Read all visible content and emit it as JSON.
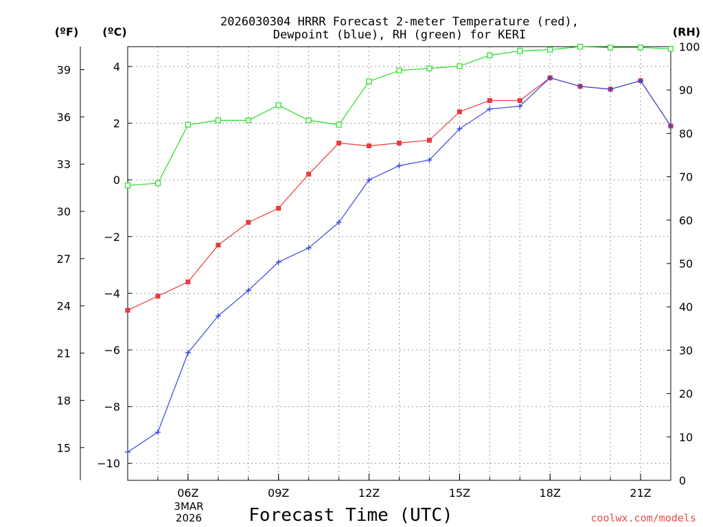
{
  "chart_data": {
    "type": "line",
    "title_line1": "2026030304 HRRR Forecast 2-meter Temperature (red),",
    "title_line2": "Dewpoint (blue), RH (green) for KERI",
    "unit_f": "(ºF)",
    "unit_c": "(ºC)",
    "unit_rh": "(RH)",
    "xlabel": "Forecast Time (UTC)",
    "date_line1": "3MAR",
    "date_line2": "2026",
    "credit": "coolwx.com/models",
    "x_hours": [
      4,
      5,
      6,
      7,
      8,
      9,
      10,
      11,
      12,
      13,
      14,
      15,
      16,
      17,
      18,
      19,
      20,
      21,
      22
    ],
    "xlim": [
      4,
      22
    ],
    "x_ticks": [
      {
        "hour": 6,
        "label": "06Z"
      },
      {
        "hour": 9,
        "label": "09Z"
      },
      {
        "hour": 12,
        "label": "12Z"
      },
      {
        "hour": 15,
        "label": "15Z"
      },
      {
        "hour": 18,
        "label": "18Z"
      },
      {
        "hour": 21,
        "label": "21Z"
      }
    ],
    "c_axis": {
      "range": [
        -10.6,
        4.7
      ],
      "ticks": [
        {
          "v": 4,
          "label": "4"
        },
        {
          "v": 2,
          "label": "2"
        },
        {
          "v": 0,
          "label": "0"
        },
        {
          "v": -2,
          "label": "−2"
        },
        {
          "v": -4,
          "label": "−4"
        },
        {
          "v": -6,
          "label": "−6"
        },
        {
          "v": -8,
          "label": "−8"
        },
        {
          "v": -10,
          "label": "−10"
        }
      ]
    },
    "f_axis": {
      "range": [
        12.92,
        40.46
      ],
      "ticks": [
        {
          "v": 39,
          "label": "39"
        },
        {
          "v": 36,
          "label": "36"
        },
        {
          "v": 33,
          "label": "33"
        },
        {
          "v": 30,
          "label": "30"
        },
        {
          "v": 27,
          "label": "27"
        },
        {
          "v": 24,
          "label": "24"
        },
        {
          "v": 21,
          "label": "21"
        },
        {
          "v": 18,
          "label": "18"
        },
        {
          "v": 15,
          "label": "15"
        }
      ]
    },
    "rh_axis": {
      "range": [
        0,
        100
      ],
      "ticks": [
        {
          "v": 100,
          "label": "100"
        },
        {
          "v": 90,
          "label": "90"
        },
        {
          "v": 80,
          "label": "80"
        },
        {
          "v": 70,
          "label": "70"
        },
        {
          "v": 60,
          "label": "60"
        },
        {
          "v": 50,
          "label": "50"
        },
        {
          "v": 40,
          "label": "40"
        },
        {
          "v": 30,
          "label": "30"
        },
        {
          "v": 20,
          "label": "20"
        },
        {
          "v": 10,
          "label": "10"
        },
        {
          "v": 0,
          "label": "0"
        }
      ]
    },
    "series": [
      {
        "name": "Temperature",
        "units": "C",
        "color": "#e83a3a",
        "marker": "filled-square",
        "values": [
          -4.6,
          -4.1,
          -3.6,
          -2.3,
          -1.5,
          -1.0,
          0.2,
          1.3,
          1.2,
          1.3,
          1.4,
          2.4,
          2.8,
          2.8,
          3.6,
          3.3,
          3.2,
          3.5,
          1.9
        ]
      },
      {
        "name": "Dewpoint",
        "units": "C",
        "color": "#3344dd",
        "marker": "plus",
        "values": [
          -9.6,
          -8.9,
          -6.1,
          -4.8,
          -3.9,
          -2.9,
          -2.4,
          -1.5,
          0.0,
          0.5,
          0.7,
          1.8,
          2.5,
          2.6,
          3.6,
          3.3,
          3.2,
          3.5,
          1.9
        ]
      },
      {
        "name": "RH",
        "units": "%",
        "color": "#22dd22",
        "marker": "open-square",
        "values": [
          68,
          68.5,
          82,
          83,
          83,
          86.5,
          83,
          82,
          92,
          94.5,
          95,
          95.5,
          98,
          99,
          99.3,
          100,
          99.8,
          99.8,
          99.5
        ]
      }
    ]
  }
}
